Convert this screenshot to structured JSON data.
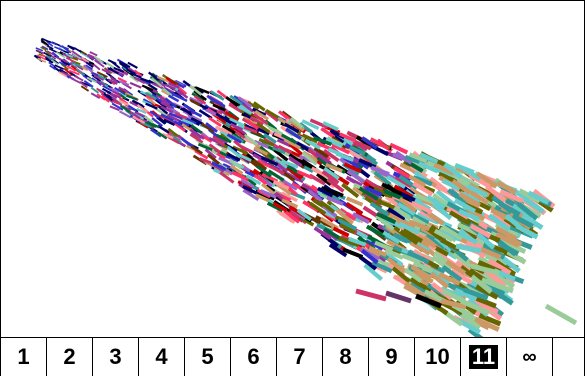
{
  "tabs": [
    {
      "label": "1"
    },
    {
      "label": "2"
    },
    {
      "label": "3"
    },
    {
      "label": "4"
    },
    {
      "label": "5"
    },
    {
      "label": "6"
    },
    {
      "label": "7"
    },
    {
      "label": "8"
    },
    {
      "label": "9"
    },
    {
      "label": "10"
    },
    {
      "label": "11",
      "selected": true
    },
    {
      "label": "∞"
    }
  ],
  "visualization": {
    "description_icon": "stroke-cloud",
    "palette": [
      "#ff3366",
      "#cc0000",
      "#993399",
      "#3333cc",
      "#000066",
      "#000000",
      "#666600",
      "#339999",
      "#66cccc",
      "#99cc99",
      "#cc9966",
      "#ff9999",
      "#663300",
      "#9966cc",
      "#006633",
      "#cc3366"
    ]
  }
}
